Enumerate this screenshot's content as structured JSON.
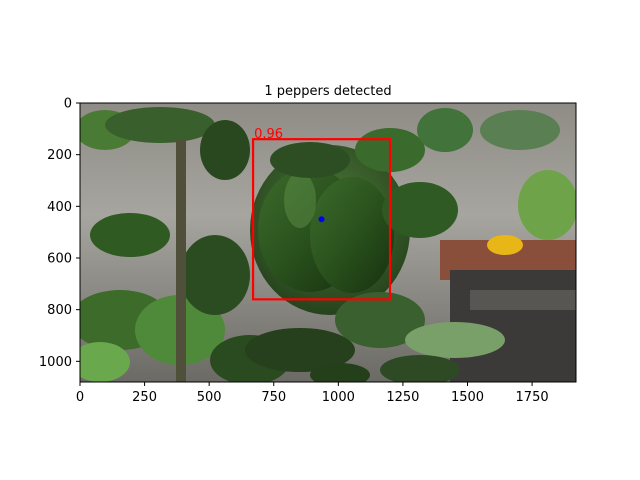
{
  "chart_data": {
    "type": "scatter",
    "title": "1 peppers detected",
    "xlabel": "",
    "ylabel": "",
    "xlim": [
      0,
      1920
    ],
    "ylim": [
      1080,
      0
    ],
    "y_inverted": true,
    "grid": false,
    "x_ticks": [
      0,
      250,
      500,
      750,
      1000,
      1250,
      1500,
      1750
    ],
    "y_ticks": [
      0,
      200,
      400,
      600,
      800,
      1000
    ],
    "x_tick_labels": [
      "0",
      "250",
      "500",
      "750",
      "1000",
      "1250",
      "1500",
      "1750"
    ],
    "y_tick_labels": [
      "0",
      "200",
      "400",
      "600",
      "800",
      "1000"
    ],
    "background_image": "photo of a green bell pepper among dark green leaves",
    "detections": [
      {
        "label_text": "0.96",
        "score": 0.96,
        "box": {
          "x_min": 670,
          "y_min": 140,
          "x_max": 1200,
          "y_max": 760
        },
        "center": {
          "x": 935,
          "y": 450
        }
      }
    ],
    "colors": {
      "box": "#ff0000",
      "score_text": "#ff0000",
      "center_marker": "#0000ff",
      "axes": "#000000"
    }
  }
}
